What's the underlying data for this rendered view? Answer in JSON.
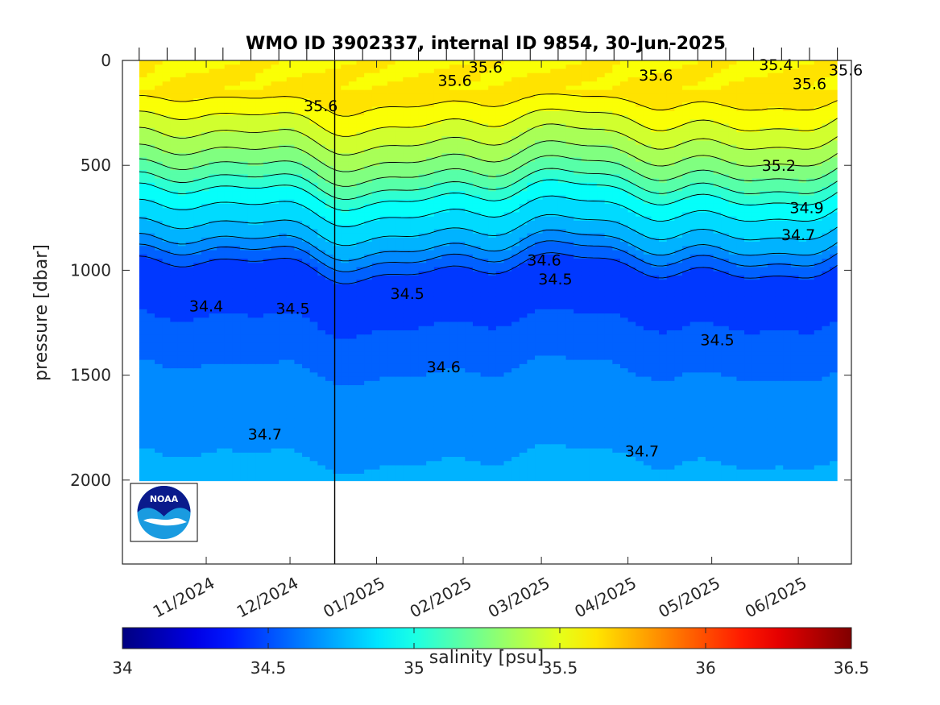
{
  "chart_data": {
    "type": "heatmap",
    "title": "WMO ID 3902337, internal ID 9854, 30-Jun-2025",
    "ylabel": "pressure [dbar]",
    "ylim": [
      2400,
      0
    ],
    "y_ticks": [
      "0",
      "500",
      "1000",
      "1500",
      "2000"
    ],
    "y_tick_values": [
      0,
      500,
      1000,
      1500,
      2000
    ],
    "x_ticks": [
      "11/2024",
      "12/2024",
      "01/2025",
      "02/2025",
      "03/2025",
      "04/2025",
      "05/2025",
      "06/2025"
    ],
    "x_tick_dates": [
      "2024-11-01",
      "2024-12-01",
      "2025-01-01",
      "2025-02-01",
      "2025-03-01",
      "2025-04-01",
      "2025-05-01",
      "2025-06-01"
    ],
    "xlim": [
      "2024-10-02",
      "2025-06-20"
    ],
    "data_range": [
      "2024-10-08",
      "2025-06-15"
    ],
    "vertical_marker_date": "2024-12-17",
    "colorbar": {
      "label": "salinity [psu]",
      "range": [
        34,
        36.5
      ],
      "ticks": [
        "34",
        "34.5",
        "35",
        "35.5",
        "36",
        "36.5"
      ],
      "colormap": "jet"
    },
    "contour_levels": [
      34.4,
      34.5,
      34.6,
      34.7,
      34.8,
      34.9,
      35.0,
      35.1,
      35.2,
      35.3,
      35.4,
      35.5,
      35.6
    ],
    "salinity_profile": {
      "pressure": [
        0,
        100,
        200,
        330,
        420,
        560,
        640,
        700,
        780,
        860,
        920,
        1000,
        1250,
        1480,
        1800,
        2000
      ],
      "salinity": [
        35.58,
        35.62,
        35.6,
        35.45,
        35.35,
        35.15,
        35.0,
        34.92,
        34.83,
        34.74,
        34.62,
        34.48,
        34.5,
        34.6,
        34.68,
        34.72
      ]
    },
    "contour_labels": [
      {
        "text": "35.6",
        "date": "2025-02-09",
        "pressure": 30
      },
      {
        "text": "35.6",
        "date": "2025-01-29",
        "pressure": 95
      },
      {
        "text": "35.6",
        "date": "2024-12-12",
        "pressure": 215
      },
      {
        "text": "35.6",
        "date": "2025-04-11",
        "pressure": 70
      },
      {
        "text": "35.4",
        "date": "2025-05-24",
        "pressure": 20
      },
      {
        "text": "35.6",
        "date": "2025-06-05",
        "pressure": 110
      },
      {
        "text": "35.6",
        "date": "2025-06-18",
        "pressure": 45
      },
      {
        "text": "35.2",
        "date": "2025-05-25",
        "pressure": 500
      },
      {
        "text": "34.9",
        "date": "2025-06-04",
        "pressure": 700
      },
      {
        "text": "34.7",
        "date": "2025-06-01",
        "pressure": 830
      },
      {
        "text": "34.6",
        "date": "2025-03-02",
        "pressure": 950
      },
      {
        "text": "34.5",
        "date": "2025-03-06",
        "pressure": 1040
      },
      {
        "text": "34.5",
        "date": "2025-01-12",
        "pressure": 1110
      },
      {
        "text": "34.4",
        "date": "2024-11-01",
        "pressure": 1170
      },
      {
        "text": "34.5",
        "date": "2024-12-02",
        "pressure": 1180
      },
      {
        "text": "34.5",
        "date": "2025-05-03",
        "pressure": 1330
      },
      {
        "text": "34.6",
        "date": "2025-01-25",
        "pressure": 1460
      },
      {
        "text": "34.7",
        "date": "2024-11-22",
        "pressure": 1780
      },
      {
        "text": "34.7",
        "date": "2025-04-06",
        "pressure": 1860
      }
    ]
  },
  "logo": {
    "text": "NOAA"
  }
}
